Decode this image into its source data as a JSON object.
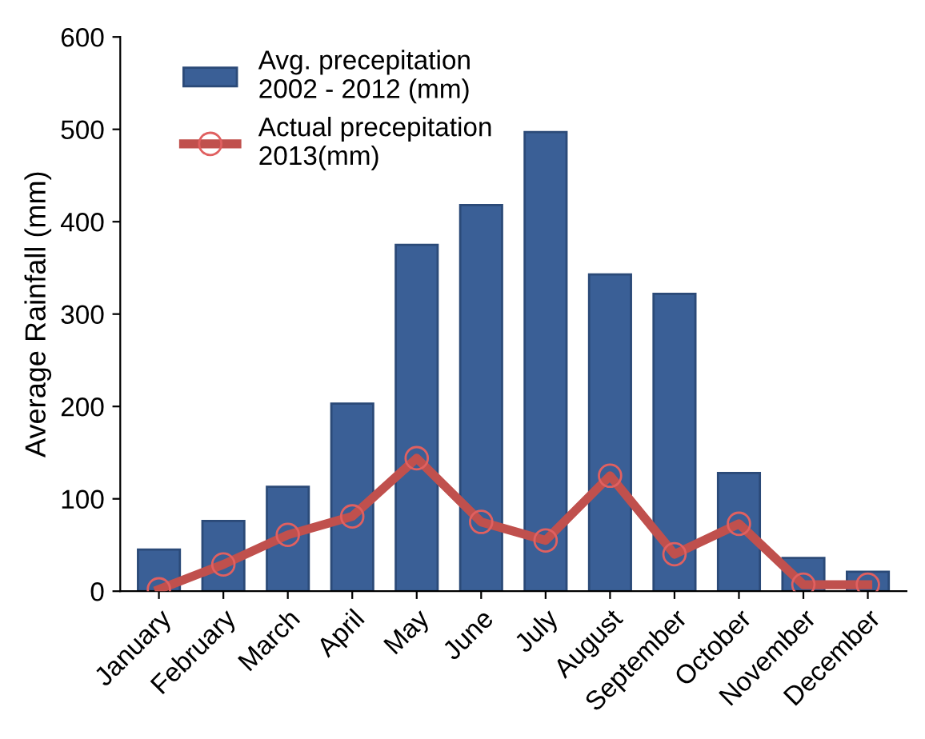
{
  "chart_data": {
    "type": "bar",
    "ylabel": "Average Rainfall (mm)",
    "categories": [
      "January",
      "February",
      "March",
      "April",
      "May",
      "June",
      "July",
      "August",
      "September",
      "October",
      "November",
      "December"
    ],
    "series": [
      {
        "name": "Avg. precepitation\n2002 - 2012 (mm)",
        "color": "#3a5f96",
        "values": [
          45,
          76,
          113,
          203,
          375,
          418,
          497,
          343,
          322,
          128,
          36,
          21
        ]
      },
      {
        "name": "Actual precepitation\n2013(mm)",
        "type": "line",
        "color": "#c0504d",
        "marker": "circle",
        "values": [
          2,
          29,
          61,
          81,
          144,
          75,
          55,
          125,
          40,
          73,
          7,
          7
        ]
      }
    ],
    "ylim": [
      0,
      600
    ],
    "yticks": [
      0,
      100,
      200,
      300,
      400,
      500,
      600
    ],
    "grid": false,
    "legend": "top left"
  }
}
